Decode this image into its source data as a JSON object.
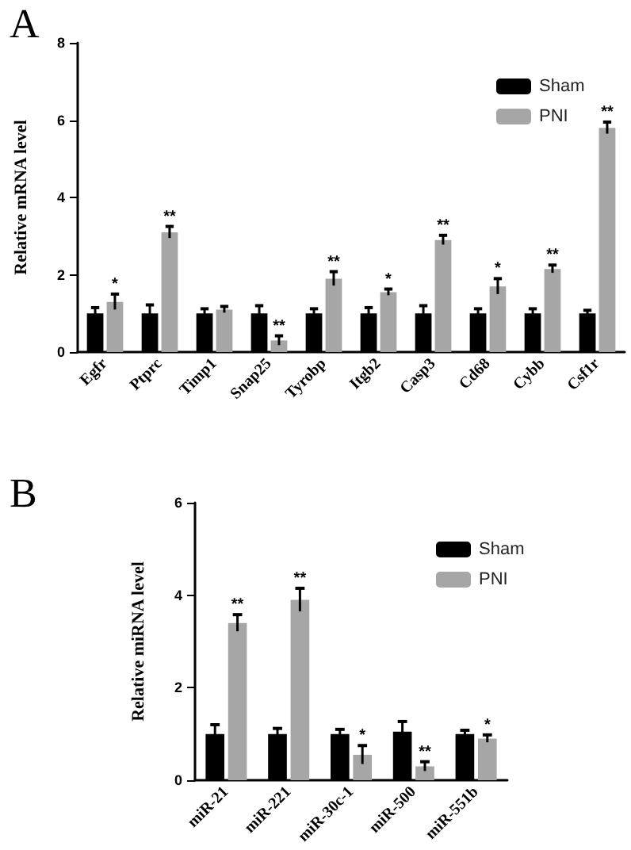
{
  "chart_data": [
    {
      "type": "bar",
      "ylabel": "Relative mRNA level",
      "categories": [
        "Egfr",
        "Ptprc",
        "Timp1",
        "Snap25",
        "Tyrobp",
        "Itgb2",
        "Casp3",
        "Cd68",
        "Cybb",
        "Csf1r"
      ],
      "series": [
        {
          "name": "Sham",
          "color": "#000000",
          "values": [
            1.0,
            1.0,
            1.0,
            1.0,
            1.0,
            1.0,
            1.0,
            1.0,
            1.0,
            1.0
          ],
          "errors": [
            0.15,
            0.22,
            0.12,
            0.2,
            0.12,
            0.15,
            0.2,
            0.12,
            0.12,
            0.08
          ]
        },
        {
          "name": "PNI",
          "color": "#a6a6a6",
          "values": [
            1.3,
            3.1,
            1.1,
            0.3,
            1.9,
            1.55,
            2.9,
            1.7,
            2.15,
            5.8
          ],
          "errors": [
            0.2,
            0.15,
            0.08,
            0.12,
            0.18,
            0.08,
            0.12,
            0.2,
            0.1,
            0.15
          ]
        }
      ],
      "ylim": [
        0,
        8
      ],
      "yticks": [
        0,
        2,
        4,
        6,
        8
      ],
      "grid": false,
      "legend": "top right",
      "annotations": [
        "A",
        {
          "text": "*",
          "x": "Egfr",
          "y": 1.5
        },
        {
          "text": "**",
          "x": "Ptprc",
          "y": 3.25
        },
        {
          "text": "**",
          "x": "Snap25",
          "y": 0.42
        },
        {
          "text": "**",
          "x": "Tyrobp",
          "y": 2.08
        },
        {
          "text": "*",
          "x": "Itgb2",
          "y": 1.63
        },
        {
          "text": "**",
          "x": "Casp3",
          "y": 3.02
        },
        {
          "text": "*",
          "x": "Cd68",
          "y": 1.9
        },
        {
          "text": "**",
          "x": "Cybb",
          "y": 2.25
        },
        {
          "text": "**",
          "x": "Csf1r",
          "y": 5.95
        }
      ]
    },
    {
      "type": "bar",
      "ylabel": "Relative miRNA level",
      "categories": [
        "miR-21",
        "miR-221",
        "miR-30c-1",
        "miR-500",
        "miR-551b"
      ],
      "series": [
        {
          "name": "Sham",
          "color": "#000000",
          "values": [
            1.0,
            1.0,
            1.0,
            1.05,
            1.0
          ],
          "errors": [
            0.2,
            0.12,
            0.1,
            0.22,
            0.08
          ]
        },
        {
          "name": "PNI",
          "color": "#a6a6a6",
          "values": [
            3.4,
            3.9,
            0.55,
            0.3,
            0.9
          ],
          "errors": [
            0.18,
            0.25,
            0.2,
            0.1,
            0.08
          ]
        }
      ],
      "ylim": [
        0,
        6
      ],
      "yticks": [
        0,
        2,
        4,
        6
      ],
      "grid": false,
      "legend": "top right",
      "annotations": [
        "B",
        {
          "text": "**",
          "x": "miR-21",
          "y": 3.58
        },
        {
          "text": "**",
          "x": "miR-221",
          "y": 4.15
        },
        {
          "text": "*",
          "x": "miR-30c-1",
          "y": 0.75
        },
        {
          "text": "**",
          "x": "miR-500",
          "y": 0.4
        },
        {
          "text": "*",
          "x": "miR-551b",
          "y": 0.98
        }
      ]
    }
  ]
}
